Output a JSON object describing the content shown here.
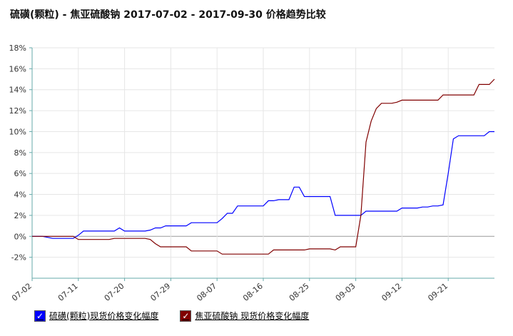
{
  "chart_data": {
    "type": "line",
    "title": "硫磺(颗粒) - 焦亚硫酸钠 2017-07-02 - 2017-09-30 价格趋势比较",
    "categories": [
      "07-02",
      null,
      null,
      null,
      null,
      null,
      null,
      null,
      null,
      "07-11",
      null,
      null,
      null,
      null,
      null,
      null,
      null,
      null,
      "07-20",
      null,
      null,
      null,
      null,
      null,
      null,
      null,
      null,
      "07-29",
      null,
      null,
      null,
      null,
      null,
      null,
      null,
      null,
      "08-07",
      null,
      null,
      null,
      null,
      null,
      null,
      null,
      null,
      "08-16",
      null,
      null,
      null,
      null,
      null,
      null,
      null,
      null,
      "08-25",
      null,
      null,
      null,
      null,
      null,
      null,
      null,
      null,
      "09-03",
      null,
      null,
      null,
      null,
      null,
      null,
      null,
      null,
      "09-12",
      null,
      null,
      null,
      null,
      null,
      null,
      null,
      null,
      "09-21",
      null,
      null,
      null,
      null,
      null,
      null,
      null,
      null,
      null
    ],
    "series": [
      {
        "name": "硫磺(颗粒)现货价格变化幅度",
        "color": "#0000ff",
        "values": [
          0,
          0,
          0,
          -0.1,
          -0.2,
          -0.2,
          -0.2,
          -0.2,
          -0.2,
          0.1,
          0.5,
          0.5,
          0.5,
          0.5,
          0.5,
          0.5,
          0.5,
          0.8,
          0.5,
          0.5,
          0.5,
          0.5,
          0.5,
          0.6,
          0.8,
          0.8,
          1.0,
          1.0,
          1.0,
          1.0,
          1.0,
          1.3,
          1.3,
          1.3,
          1.3,
          1.3,
          1.3,
          1.7,
          2.2,
          2.2,
          2.9,
          2.9,
          2.9,
          2.9,
          2.9,
          2.9,
          3.4,
          3.4,
          3.5,
          3.5,
          3.5,
          4.7,
          4.7,
          3.8,
          3.8,
          3.8,
          3.8,
          3.8,
          3.8,
          2.0,
          2.0,
          2.0,
          2.0,
          2.0,
          2.0,
          2.4,
          2.4,
          2.4,
          2.4,
          2.4,
          2.4,
          2.4,
          2.7,
          2.7,
          2.7,
          2.7,
          2.8,
          2.8,
          2.9,
          2.9,
          3.0,
          6.0,
          9.3,
          9.6,
          9.6,
          9.6,
          9.6,
          9.6,
          9.6,
          10.0,
          10.0
        ]
      },
      {
        "name": "焦亚硫酸钠 现货价格变化幅度",
        "color": "#800000",
        "values": [
          0,
          0,
          0,
          0,
          0,
          0,
          0,
          0,
          0,
          -0.3,
          -0.3,
          -0.3,
          -0.3,
          -0.3,
          -0.3,
          -0.3,
          -0.2,
          -0.2,
          -0.2,
          -0.2,
          -0.2,
          -0.2,
          -0.2,
          -0.3,
          -0.7,
          -1.0,
          -1.0,
          -1.0,
          -1.0,
          -1.0,
          -1.0,
          -1.4,
          -1.4,
          -1.4,
          -1.4,
          -1.4,
          -1.4,
          -1.7,
          -1.7,
          -1.7,
          -1.7,
          -1.7,
          -1.7,
          -1.7,
          -1.7,
          -1.7,
          -1.7,
          -1.3,
          -1.3,
          -1.3,
          -1.3,
          -1.3,
          -1.3,
          -1.3,
          -1.2,
          -1.2,
          -1.2,
          -1.2,
          -1.2,
          -1.3,
          -1.0,
          -1.0,
          -1.0,
          -1.0,
          2.0,
          9.0,
          11.0,
          12.2,
          12.7,
          12.7,
          12.7,
          12.8,
          13.0,
          13.0,
          13.0,
          13.0,
          13.0,
          13.0,
          13.0,
          13.0,
          13.5,
          13.5,
          13.5,
          13.5,
          13.5,
          13.5,
          13.5,
          14.5,
          14.5,
          14.5,
          15.0
        ]
      }
    ],
    "ylim": [
      -4,
      18
    ],
    "yticks": [
      {
        "value": -2,
        "label": "-2%"
      },
      {
        "value": 0,
        "label": "0%"
      },
      {
        "value": 2,
        "label": "2%"
      },
      {
        "value": 4,
        "label": "4%"
      },
      {
        "value": 6,
        "label": "6%"
      },
      {
        "value": 8,
        "label": "8%"
      },
      {
        "value": 10,
        "label": "10%"
      },
      {
        "value": 12,
        "label": "12%"
      },
      {
        "value": 14,
        "label": "14%"
      },
      {
        "value": 16,
        "label": "16%"
      },
      {
        "value": 18,
        "label": "18%"
      }
    ],
    "grid": true
  }
}
